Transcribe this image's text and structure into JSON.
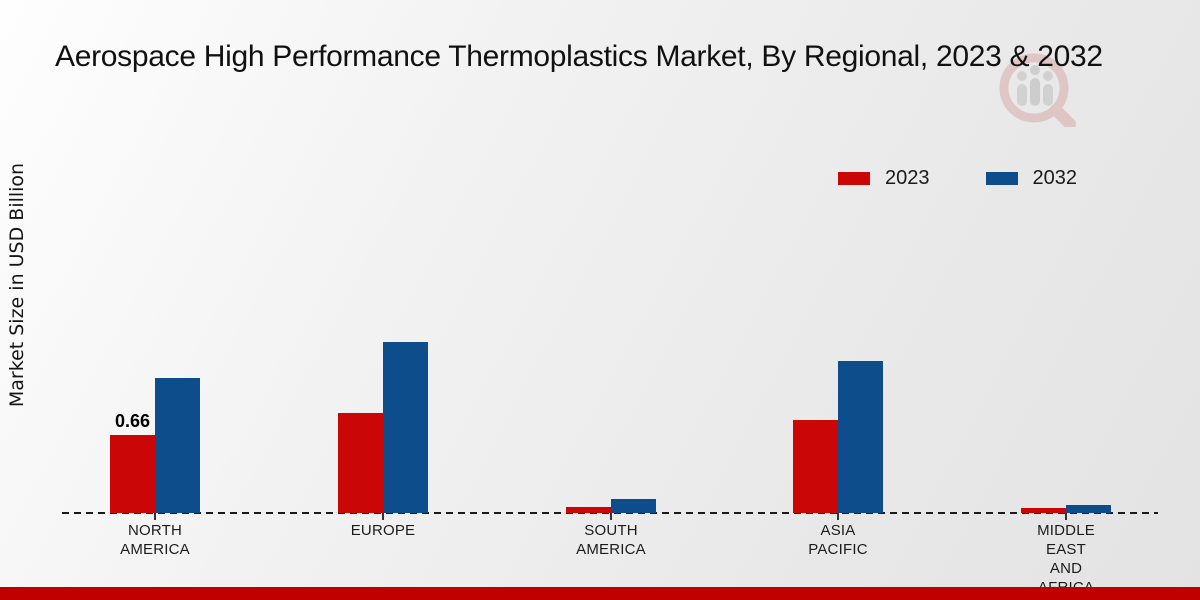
{
  "header": {
    "title": "Aerospace High Performance Thermoplastics Market, By Regional, 2023 & 2032"
  },
  "y_axis": {
    "label": "Market Size in USD Billion"
  },
  "legend": {
    "items": [
      {
        "label": "2023",
        "color": "#cb0606"
      },
      {
        "label": "2032",
        "color": "#0d4d8c"
      }
    ]
  },
  "watermark": {
    "name": "magnifier-bar-chart-logo",
    "ring_color": "#c2514d",
    "bars_color": "#8f8f8f"
  },
  "footer": {
    "color": "#c00000"
  },
  "chart_data": {
    "type": "bar",
    "title": "Aerospace High Performance Thermoplastics Market, By Regional, 2023 & 2032",
    "categories": [
      "NORTH AMERICA",
      "EUROPE",
      "SOUTH AMERICA",
      "ASIA PACIFIC",
      "MIDDLE EAST AND AFRICA"
    ],
    "series": [
      {
        "name": "2023",
        "color": "#cb0606",
        "values": [
          0.66,
          0.85,
          0.05,
          0.79,
          0.04
        ]
      },
      {
        "name": "2032",
        "color": "#0d4d8c",
        "values": [
          1.14,
          1.45,
          0.12,
          1.29,
          0.07
        ]
      }
    ],
    "annotations": [
      {
        "text": "0.66",
        "category_index": 0,
        "series_index": 0
      }
    ],
    "xlabel": "",
    "ylabel": "Market Size in USD Billion",
    "ylim": [
      0,
      1.6
    ],
    "grid": false,
    "legend_position": "top-right",
    "baseline_style": "dashed",
    "value_axis_ticks_visible": false
  }
}
